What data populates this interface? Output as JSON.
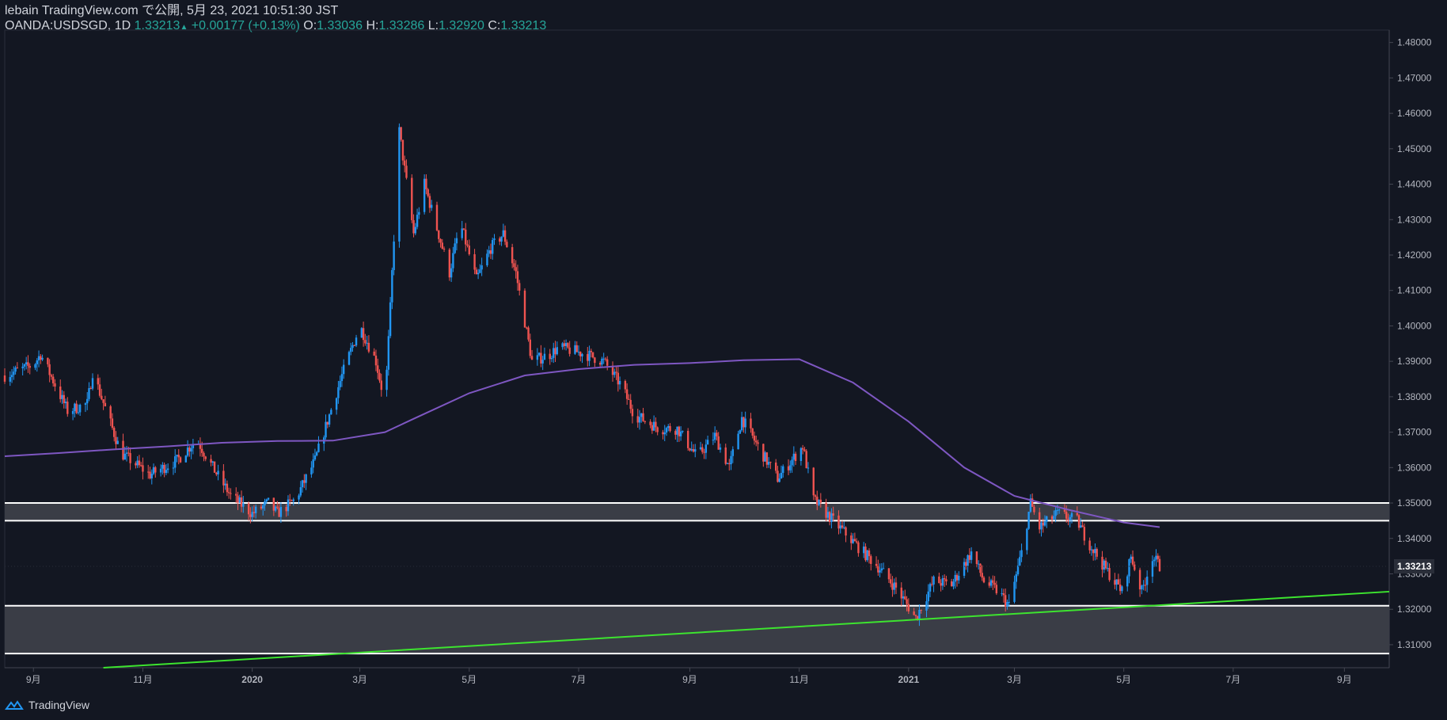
{
  "header": {
    "line1": "lebain TradingView.com で公開, 5月 23, 2021 10:51:30 JST",
    "symbol": "OANDA:USDSGD, 1D",
    "last": "1.33213",
    "change": "+0.00177 (+0.13%)",
    "o_label": "O:",
    "o_value": "1.33036",
    "h_label": "H:",
    "h_value": "1.33286",
    "l_label": "L:",
    "l_value": "1.32920",
    "c_label": "C:",
    "c_value": "1.33213"
  },
  "footer": {
    "brand": "TradingView"
  },
  "chart_data": {
    "type": "candlestick",
    "colors": {
      "up": "#2196f3",
      "down": "#ef5350",
      "ma": "#7e57c2",
      "trend": "#3de42f",
      "zone": "#3a3d46",
      "background": "#131722"
    },
    "y_ticks": [
      "1.48000",
      "1.47000",
      "1.46000",
      "1.45000",
      "1.44000",
      "1.43000",
      "1.42000",
      "1.41000",
      "1.40000",
      "1.39000",
      "1.38000",
      "1.37000",
      "1.36000",
      "1.35000",
      "1.34000",
      "1.33000",
      "1.32000",
      "1.31000"
    ],
    "ylim": [
      1.3035,
      1.4835
    ],
    "last_price_label": "1.33213",
    "x_ticks": [
      "9月",
      "11月",
      "2020",
      "3月",
      "5月",
      "7月",
      "9月",
      "11月",
      "2021",
      "3月",
      "5月",
      "7月",
      "9月"
    ],
    "zones": [
      [
        1.345,
        1.35
      ],
      [
        1.3075,
        1.321
      ]
    ],
    "trendline": {
      "start": [
        "2019-10-10",
        1.3035
      ],
      "end": [
        "2021-09-20",
        1.3248
      ]
    },
    "ma_path": [
      [
        "2019-08-16",
        1.3632
      ],
      [
        "2019-09-15",
        1.3641
      ],
      [
        "2019-10-15",
        1.3651
      ],
      [
        "2019-11-15",
        1.366
      ],
      [
        "2019-12-15",
        1.367
      ],
      [
        "2020-01-15",
        1.3675
      ],
      [
        "2020-02-15",
        1.3676
      ],
      [
        "2020-03-15",
        1.37
      ],
      [
        "2020-04-01",
        1.374
      ],
      [
        "2020-05-01",
        1.381
      ],
      [
        "2020-06-01",
        1.386
      ],
      [
        "2020-07-01",
        1.3878
      ],
      [
        "2020-08-01",
        1.389
      ],
      [
        "2020-09-01",
        1.3895
      ],
      [
        "2020-10-01",
        1.3903
      ],
      [
        "2020-11-01",
        1.3906
      ],
      [
        "2020-12-01",
        1.384
      ],
      [
        "2021-01-01",
        1.373
      ],
      [
        "2021-02-01",
        1.36
      ],
      [
        "2021-03-01",
        1.352
      ],
      [
        "2021-04-01",
        1.348
      ],
      [
        "2021-05-01",
        1.3445
      ],
      [
        "2021-05-21",
        1.3432
      ]
    ],
    "price_path": [
      [
        "2019-08-16",
        1.386
      ],
      [
        "2019-09-01",
        1.389
      ],
      [
        "2019-09-05",
        1.392
      ],
      [
        "2019-09-20",
        1.376
      ],
      [
        "2019-10-01",
        1.378
      ],
      [
        "2019-10-04",
        1.387
      ],
      [
        "2019-10-15",
        1.371
      ],
      [
        "2019-10-20",
        1.364
      ],
      [
        "2019-11-05",
        1.358
      ],
      [
        "2019-11-20",
        1.362
      ],
      [
        "2019-12-01",
        1.368
      ],
      [
        "2019-12-10",
        1.36
      ],
      [
        "2019-12-20",
        1.352
      ],
      [
        "2020-01-01",
        1.347
      ],
      [
        "2020-01-10",
        1.35
      ],
      [
        "2020-01-15",
        1.347
      ],
      [
        "2020-01-25",
        1.351
      ],
      [
        "2020-02-05",
        1.362
      ],
      [
        "2020-02-20",
        1.386
      ],
      [
        "2020-03-01",
        1.4
      ],
      [
        "2020-03-10",
        1.39
      ],
      [
        "2020-03-15",
        1.378
      ],
      [
        "2020-03-18",
        1.405
      ],
      [
        "2020-03-23",
        1.455
      ],
      [
        "2020-03-31",
        1.426
      ],
      [
        "2020-04-06",
        1.44
      ],
      [
        "2020-04-20",
        1.415
      ],
      [
        "2020-04-26",
        1.429
      ],
      [
        "2020-05-05",
        1.413
      ],
      [
        "2020-05-13",
        1.422
      ],
      [
        "2020-05-20",
        1.426
      ],
      [
        "2020-05-27",
        1.415
      ],
      [
        "2020-06-05",
        1.39
      ],
      [
        "2020-06-15",
        1.392
      ],
      [
        "2020-06-20",
        1.394
      ],
      [
        "2020-07-05",
        1.392
      ],
      [
        "2020-07-15",
        1.39
      ],
      [
        "2020-07-25",
        1.383
      ],
      [
        "2020-08-01",
        1.375
      ],
      [
        "2020-08-15",
        1.371
      ],
      [
        "2020-08-25",
        1.371
      ],
      [
        "2020-09-05",
        1.363
      ],
      [
        "2020-09-15",
        1.369
      ],
      [
        "2020-09-23",
        1.36
      ],
      [
        "2020-09-30",
        1.374
      ],
      [
        "2020-10-10",
        1.365
      ],
      [
        "2020-10-20",
        1.357
      ],
      [
        "2020-11-03",
        1.366
      ],
      [
        "2020-11-09",
        1.351
      ],
      [
        "2020-11-20",
        1.345
      ],
      [
        "2020-12-05",
        1.337
      ],
      [
        "2020-12-15",
        1.332
      ],
      [
        "2020-12-25",
        1.326
      ],
      [
        "2021-01-05",
        1.3175
      ],
      [
        "2021-01-15",
        1.328
      ],
      [
        "2021-01-25",
        1.327
      ],
      [
        "2021-02-05",
        1.336
      ],
      [
        "2021-02-12",
        1.328
      ],
      [
        "2021-02-20",
        1.325
      ],
      [
        "2021-02-26",
        1.321
      ],
      [
        "2021-03-05",
        1.336
      ],
      [
        "2021-03-10",
        1.35
      ],
      [
        "2021-03-15",
        1.343
      ],
      [
        "2021-03-25",
        1.347
      ],
      [
        "2021-04-05",
        1.345
      ],
      [
        "2021-04-10",
        1.34
      ],
      [
        "2021-04-20",
        1.332
      ],
      [
        "2021-04-30",
        1.325
      ],
      [
        "2021-05-05",
        1.335
      ],
      [
        "2021-05-11",
        1.325
      ],
      [
        "2021-05-17",
        1.335
      ],
      [
        "2021-05-21",
        1.3321
      ]
    ]
  }
}
